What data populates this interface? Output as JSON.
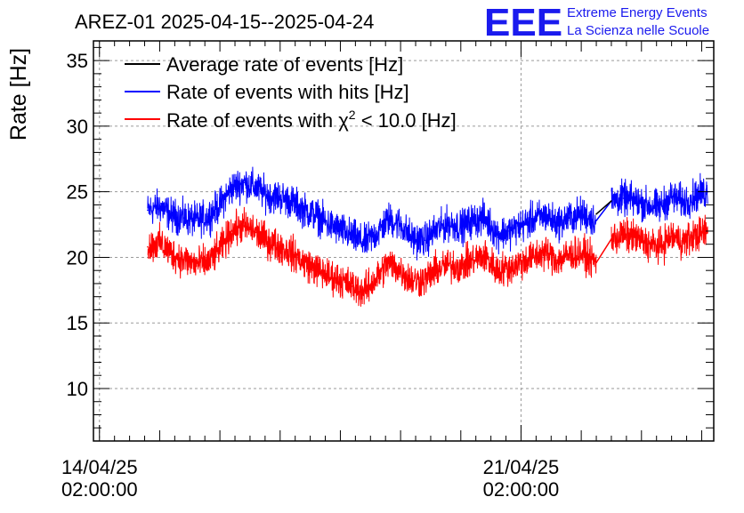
{
  "header": {
    "title": "AREZ-01 2025-04-15--2025-04-24",
    "logo_text": "EEE",
    "org_line1": "Extreme Energy Events",
    "org_line2": "La Scienza nelle Scuole"
  },
  "colors": {
    "average": "#000000",
    "hits": "#0000ff",
    "chi2": "#ff0000",
    "grid": "#9a9a9a",
    "logo": "#1a1aee"
  },
  "chart_data": {
    "type": "line",
    "title": "AREZ-01 2025-04-15--2025-04-24",
    "xlabel": "",
    "ylabel": "Rate [Hz]",
    "ylim": [
      6,
      36.5
    ],
    "xlim_days": [
      -0.1,
      10.2
    ],
    "yticks": [
      10,
      15,
      20,
      25,
      30,
      35
    ],
    "ytick_labels": [
      "10",
      "15",
      "20",
      "25",
      "30",
      "35"
    ],
    "xticks": [
      {
        "day": 0,
        "date": "14/04/25",
        "time": "02:00:00"
      },
      {
        "day": 7,
        "date": "21/04/25",
        "time": "02:00:00"
      }
    ],
    "grid": true,
    "legend_position": "top-left",
    "legend": [
      {
        "key": "average",
        "text": "Average rate of events [Hz]"
      },
      {
        "key": "hits",
        "text": "Rate of events with hits [Hz]"
      },
      {
        "key": "chi2",
        "text_prefix": "Rate of events with ",
        "chi_symbol": "χ",
        "chi_sup": "2",
        "text_suffix": " < 10.0 [Hz]"
      }
    ],
    "gap_days": [
      8.25,
      8.5
    ],
    "series": [
      {
        "name": "Rate of events with hits [Hz]",
        "key": "hits",
        "x_days": [
          0.8,
          1.0,
          1.2,
          1.4,
          1.6,
          1.8,
          2.0,
          2.2,
          2.4,
          2.6,
          2.8,
          3.0,
          3.2,
          3.4,
          3.6,
          3.8,
          4.0,
          4.2,
          4.4,
          4.6,
          4.8,
          5.0,
          5.2,
          5.4,
          5.6,
          5.8,
          6.0,
          6.2,
          6.4,
          6.6,
          6.8,
          7.0,
          7.2,
          7.4,
          7.6,
          7.8,
          8.0,
          8.25,
          8.5,
          8.7,
          8.9,
          9.1,
          9.3,
          9.5,
          9.7,
          9.9,
          10.1
        ],
        "values": [
          23.6,
          23.9,
          23.2,
          23.0,
          22.8,
          23.1,
          24.0,
          25.3,
          25.7,
          25.3,
          24.7,
          24.6,
          24.2,
          23.6,
          23.2,
          22.5,
          22.1,
          21.6,
          21.1,
          21.8,
          22.9,
          22.5,
          21.4,
          21.3,
          22.1,
          22.6,
          22.3,
          22.8,
          23.0,
          21.8,
          22.0,
          22.4,
          22.9,
          23.2,
          22.6,
          23.0,
          23.3,
          22.8,
          24.3,
          24.5,
          24.3,
          24.0,
          23.8,
          24.6,
          24.2,
          24.7,
          25.0
        ],
        "noise_amplitude": 1.0
      },
      {
        "name": "Rate of events with χ2 < 10.0 [Hz]",
        "key": "chi2",
        "x_days": [
          0.8,
          1.0,
          1.2,
          1.4,
          1.6,
          1.8,
          2.0,
          2.2,
          2.4,
          2.6,
          2.8,
          3.0,
          3.2,
          3.4,
          3.6,
          3.8,
          4.0,
          4.2,
          4.4,
          4.6,
          4.8,
          5.0,
          5.2,
          5.4,
          5.6,
          5.8,
          6.0,
          6.2,
          6.4,
          6.6,
          6.8,
          7.0,
          7.2,
          7.4,
          7.6,
          7.8,
          8.0,
          8.25,
          8.5,
          8.7,
          8.9,
          9.1,
          9.3,
          9.5,
          9.7,
          9.9,
          10.1
        ],
        "values": [
          20.8,
          21.1,
          20.3,
          19.8,
          19.5,
          19.6,
          20.6,
          22.0,
          22.4,
          21.9,
          21.2,
          20.8,
          20.3,
          19.6,
          19.1,
          18.6,
          18.3,
          17.8,
          17.4,
          18.4,
          19.6,
          19.0,
          18.2,
          18.3,
          19.1,
          19.4,
          19.3,
          19.8,
          20.1,
          19.0,
          19.2,
          19.6,
          20.0,
          20.4,
          19.8,
          20.2,
          20.3,
          19.6,
          21.4,
          21.7,
          21.5,
          21.0,
          20.8,
          21.6,
          21.2,
          21.7,
          22.0
        ],
        "noise_amplitude": 1.0
      },
      {
        "name": "Average rate of events [Hz]",
        "key": "average",
        "x_days": [
          8.25,
          8.5
        ],
        "values": [
          23.3,
          24.3
        ],
        "noise_amplitude": 0
      }
    ]
  }
}
